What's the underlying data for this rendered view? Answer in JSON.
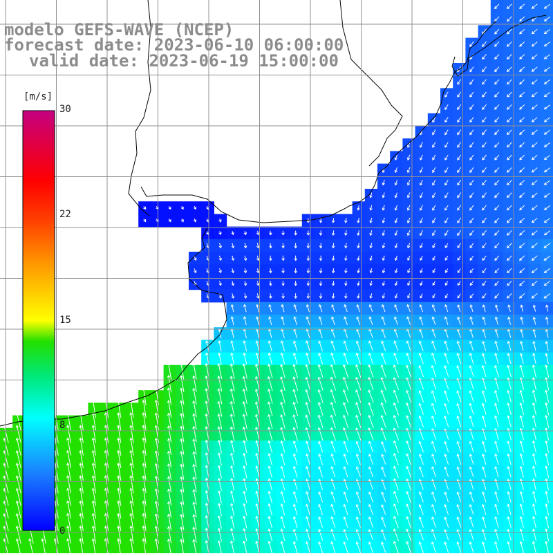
{
  "title": {
    "line1": "modelo GEFS-WAVE (NCEP)",
    "line2": "forecast date: 2023-06-10 06:00:00",
    "line3": "valid date: 2023-06-19 15:00:00"
  },
  "colorbar": {
    "unit": "[m/s]",
    "min": 0,
    "max": 30,
    "ticks": [
      "30",
      "22",
      "15",
      "8",
      "0"
    ],
    "stops": [
      {
        "v": 0,
        "c": "#0000ff"
      },
      {
        "v": 4,
        "c": "#1a7dff"
      },
      {
        "v": 8,
        "c": "#00ffff"
      },
      {
        "v": 11,
        "c": "#00e87a"
      },
      {
        "v": 13.5,
        "c": "#22e000"
      },
      {
        "v": 15,
        "c": "#ffff00"
      },
      {
        "v": 19,
        "c": "#ff9900"
      },
      {
        "v": 22,
        "c": "#ff4400"
      },
      {
        "v": 25,
        "c": "#ff0000"
      },
      {
        "v": 30,
        "c": "#c40080"
      }
    ]
  },
  "colors": {
    "land": "#ffffff",
    "coast": "#000000",
    "grid": "#909090",
    "arrow": "#ffffff",
    "title": "#8c8c8c"
  }
}
